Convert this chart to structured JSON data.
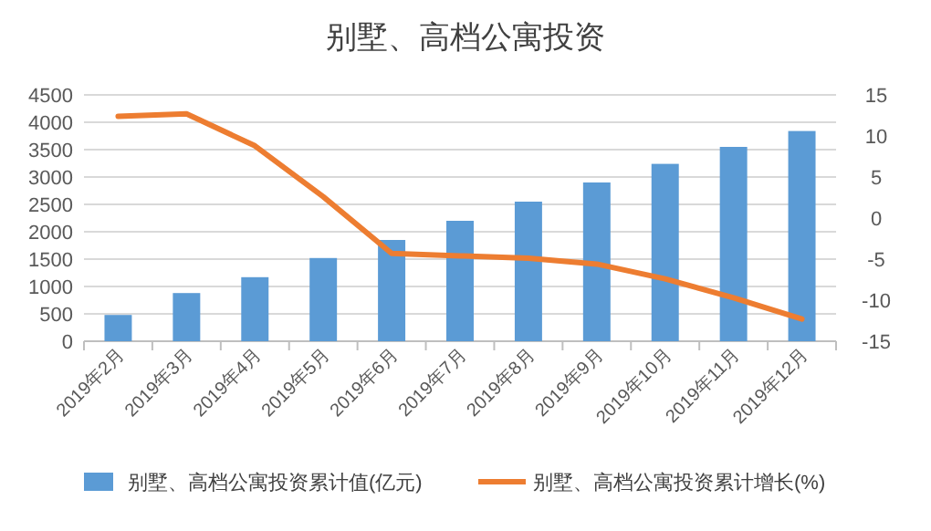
{
  "chart_data": {
    "type": "bar",
    "title": "别墅、高档公寓投资",
    "categories": [
      "2019年2月",
      "2019年3月",
      "2019年4月",
      "2019年5月",
      "2019年6月",
      "2019年7月",
      "2019年8月",
      "2019年9月",
      "2019年10月",
      "2019年11月",
      "2019年12月"
    ],
    "series": [
      {
        "name": "别墅、高档公寓投资累计值(亿元)",
        "color": "#5b9bd5",
        "values": [
          480,
          880,
          1170,
          1520,
          1850,
          2200,
          2550,
          2900,
          3240,
          3550,
          3840
        ]
      },
      {
        "name": "别墅、高档公寓投资累计增长(%)",
        "type": "line",
        "axis": "y2",
        "color": "#ed7d31",
        "values": [
          12.4,
          12.7,
          8.8,
          2.6,
          -4.3,
          -4.6,
          -4.9,
          -5.6,
          -7.4,
          -9.7,
          -12.3
        ]
      }
    ],
    "ylim": [
      0,
      4500
    ],
    "yticks": [
      0,
      500,
      1000,
      1500,
      2000,
      2500,
      3000,
      3500,
      4000,
      4500
    ],
    "y2lim": [
      -15,
      15
    ],
    "y2ticks": [
      -15,
      -10,
      -5,
      0,
      5,
      10,
      15
    ],
    "grid": "y",
    "legend": "bottom"
  }
}
